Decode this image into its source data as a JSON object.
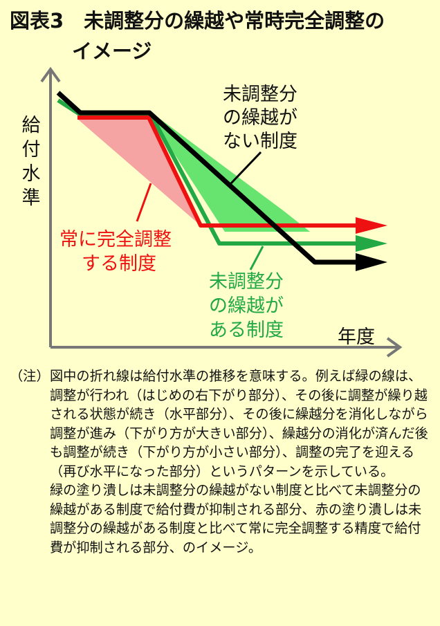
{
  "title": {
    "line1": "図表3　未調整分の繰越や常時完全調整の",
    "line2": "イメージ"
  },
  "diagram": {
    "y_axis_label": [
      "給",
      "付",
      "水",
      "準"
    ],
    "x_axis_label": "年度",
    "black_label": [
      "未調整分",
      "の繰越が",
      "ない制度"
    ],
    "red_label": [
      "常に完全調整",
      "する制度"
    ],
    "green_label": [
      "未調整分",
      "の繰越が",
      "ある制度"
    ],
    "colors": {
      "black": "#000000",
      "red": "#ee1111",
      "green": "#22a845",
      "green_fill": "#66e46f",
      "red_fill": "#f6a3a3",
      "background": "#ffffcc"
    }
  },
  "note": {
    "tag": "（注）",
    "paragraph1": "図中の折れ線は給付水準の推移を意味する。例えば緑の線は、調整が行われ（はじめの右下がり部分）、その後に調整が繰り越される状態が続き（水平部分）、その後に繰越分を消化しながら調整が進み（下がり方が大きい部分）、繰越分の消化が済んだ後も調整が続き（下がり方が小さい部分）、調整の完了を迎える（再び水平になった部分）というパターンを示している。",
    "paragraph2": "緑の塗り潰しは未調整分の繰越がない制度と比べて未調整分の繰越がある制度で給付費が抑制される部分、赤の塗り潰しは未調整分の繰越がある制度と比べて常に完全調整する精度で給付費が抑制される部分、のイメージ。"
  }
}
